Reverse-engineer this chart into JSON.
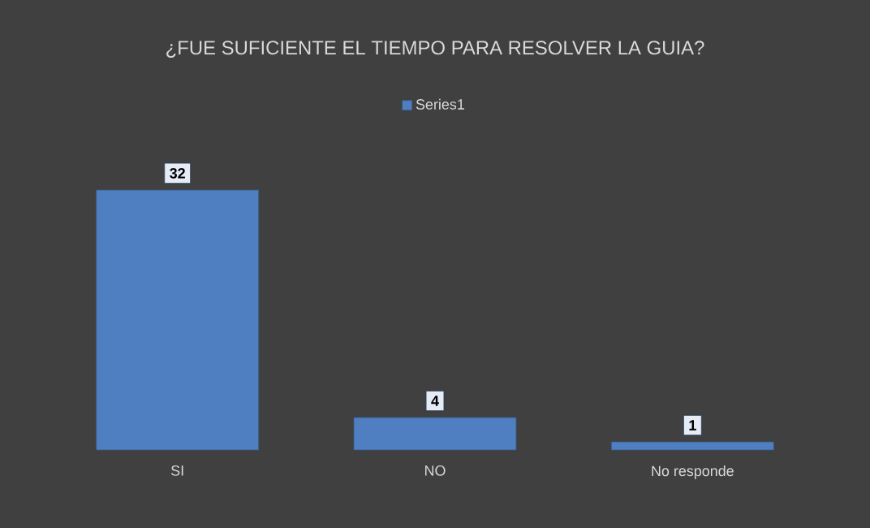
{
  "chart_data": {
    "type": "bar",
    "title": "¿FUE SUFICIENTE EL TIEMPO PARA RESOLVER LA GUIA?",
    "categories": [
      "SI",
      "NO",
      "No responde"
    ],
    "series": [
      {
        "name": "Series1",
        "color": "#4f7fc0",
        "values": [
          32,
          4,
          1
        ]
      }
    ],
    "data_labels": true,
    "legend": "top"
  }
}
